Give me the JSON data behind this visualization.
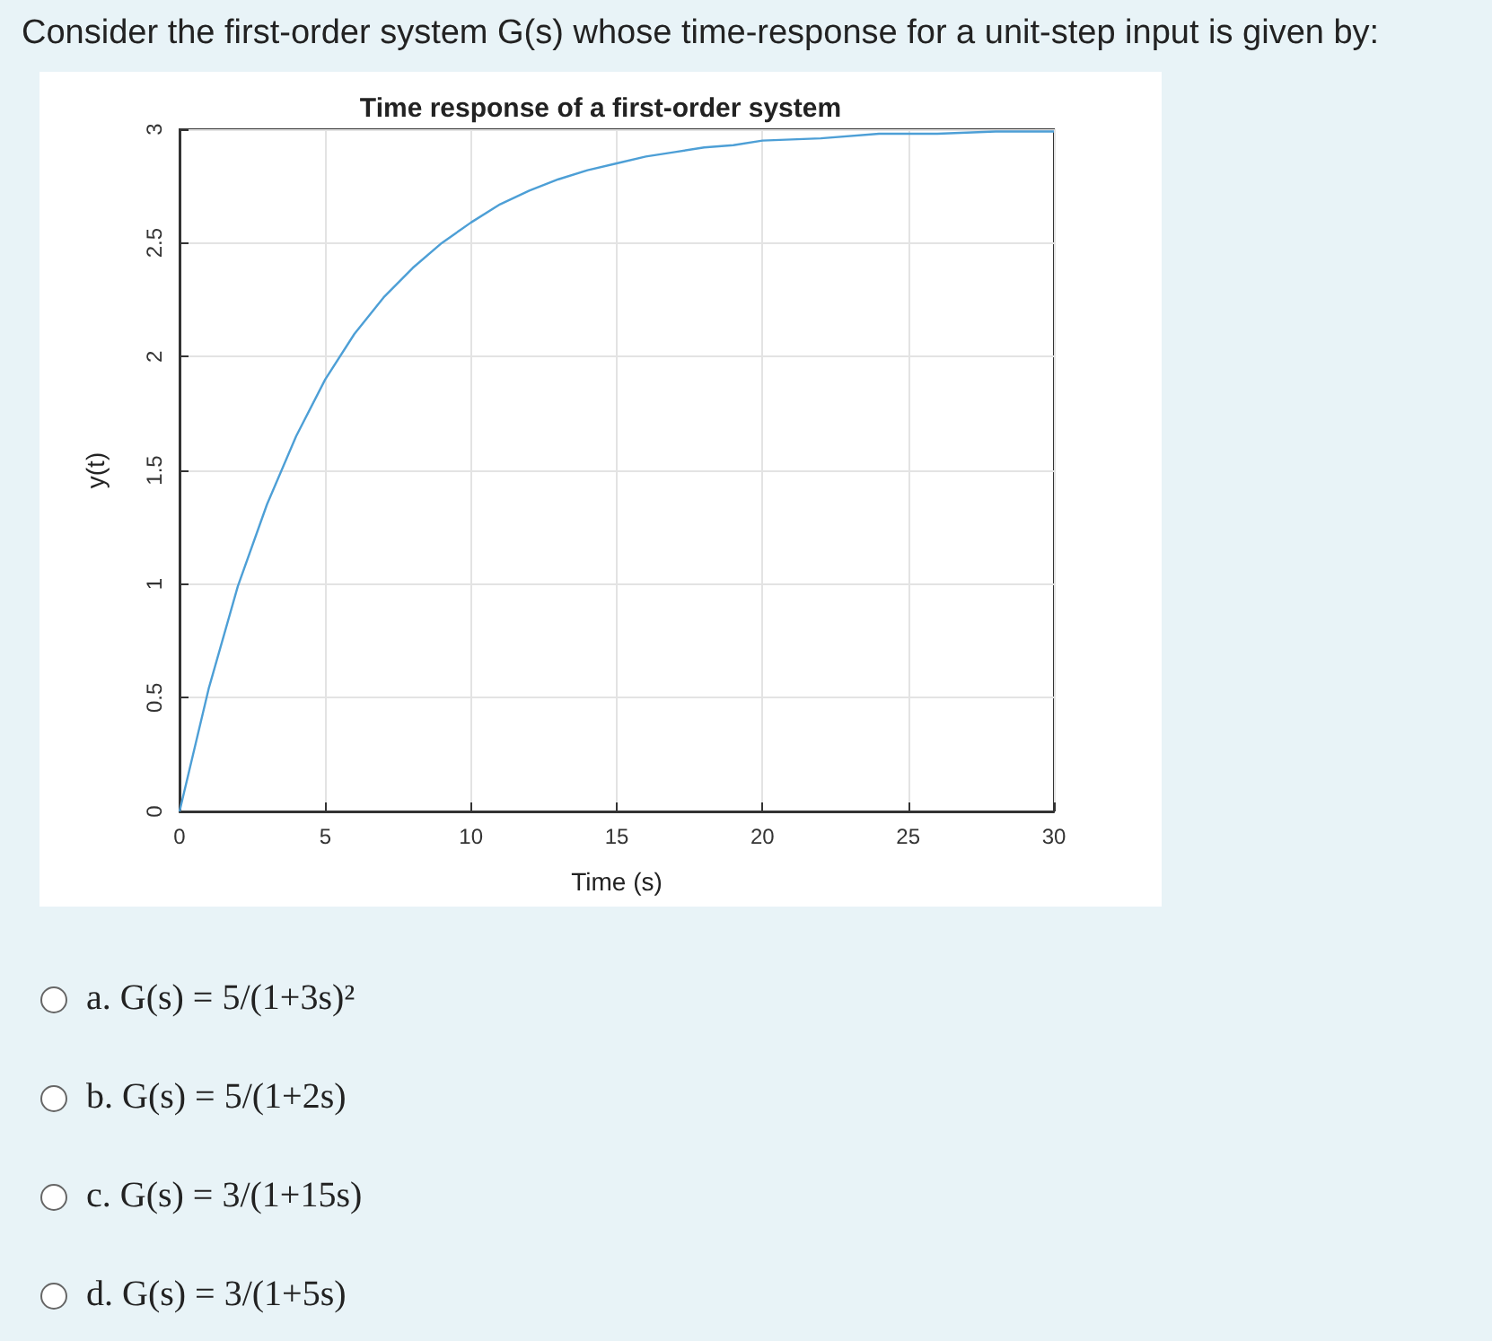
{
  "chart_data": {
    "type": "line",
    "title": "Time response of a first-order system",
    "xlabel": "Time (s)",
    "ylabel": "y(t)",
    "annotations": [
      "Consider the first-order system G(s) whose time-response for a unit-step input is given by:",
      "a.  G(s) = 5/(1+3s)²",
      "b.  G(s) = 5/(1+2s)",
      "c.  G(s) = 3/(1+15s)",
      "d.  G(s) = 3/(1+5s)"
    ],
    "series": [
      {
        "color": "#4d9fd6",
        "x": [
          0,
          1,
          2,
          3,
          4,
          5,
          6,
          7,
          8,
          9,
          10,
          11,
          12,
          13,
          14,
          15,
          16,
          17,
          18,
          19,
          20,
          22,
          24,
          26,
          28,
          30
        ],
        "values": [
          0,
          0.54,
          0.99,
          1.35,
          1.65,
          1.9,
          2.1,
          2.26,
          2.39,
          2.5,
          2.59,
          2.67,
          2.73,
          2.78,
          2.82,
          2.85,
          2.88,
          2.9,
          2.92,
          2.93,
          2.95,
          2.96,
          2.98,
          2.98,
          2.99,
          2.99
        ]
      }
    ],
    "xlim": [
      0,
      30
    ],
    "xticks": [
      0,
      5,
      10,
      15,
      20,
      25,
      30
    ],
    "ylim": [
      0,
      3
    ],
    "yticks": [
      0,
      0.5,
      1,
      1.5,
      2,
      2.5,
      3
    ],
    "grid": true,
    "marker": "none",
    "line_style": "solid"
  }
}
